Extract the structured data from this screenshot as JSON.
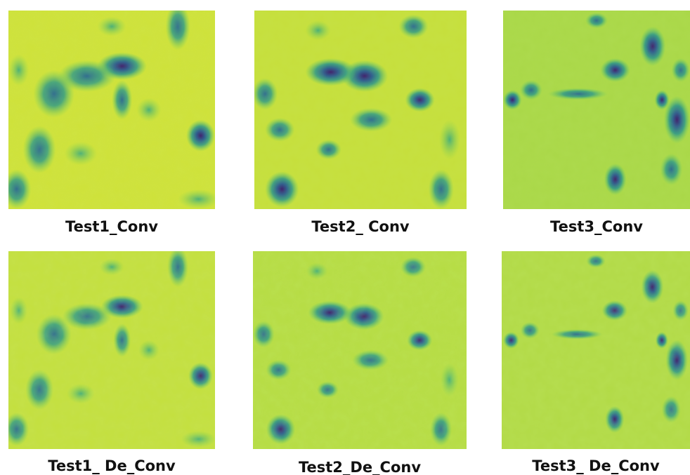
{
  "panels": [
    {
      "caption": "Test1_Conv"
    },
    {
      "caption": "Test2_ Conv"
    },
    {
      "caption": "Test3_Conv"
    },
    {
      "caption": "Test1_ De_Conv"
    },
    {
      "caption": "Test2_De_Conv"
    },
    {
      "caption": "Test3_ De_Conv"
    }
  ]
}
